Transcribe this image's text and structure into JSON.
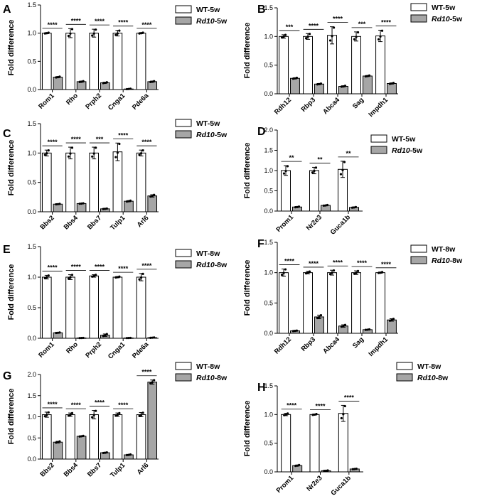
{
  "y_axis_label": "Fold difference",
  "colors": {
    "wt": "#ffffff",
    "rd10": "#a6a6a6",
    "stroke": "#000000"
  },
  "chart_data": [
    {
      "panel": "A",
      "type": "bar",
      "categories": [
        "Rom1",
        "Rho",
        "Prph2",
        "Cnga1",
        "Pde6a"
      ],
      "series": [
        {
          "name": "WT-5w",
          "values": [
            1.0,
            1.0,
            1.0,
            1.0,
            1.0
          ],
          "err": [
            0.01,
            0.08,
            0.07,
            0.05,
            0.01
          ]
        },
        {
          "name": "Rd10-5w",
          "values": [
            0.22,
            0.14,
            0.12,
            0.01,
            0.14
          ],
          "err": [
            0.01,
            0.01,
            0.01,
            0.005,
            0.01
          ]
        }
      ],
      "sig": [
        "****",
        "****",
        "****",
        "****",
        "****"
      ],
      "ylim": [
        0,
        1.5
      ],
      "yticks": [
        "0.0",
        "0.5",
        "1.0",
        "1.5"
      ],
      "legend": [
        {
          "pre": "WT-5w",
          "ital": "",
          "suf": ""
        },
        {
          "pre": "",
          "ital": "Rd10",
          "suf": "-5w"
        }
      ]
    },
    {
      "panel": "B",
      "type": "bar",
      "categories": [
        "Rdh12",
        "Rbp3",
        "Abca4",
        "Sag",
        "Impdh1"
      ],
      "series": [
        {
          "name": "WT-5w",
          "values": [
            1.0,
            1.0,
            1.02,
            1.0,
            1.01
          ],
          "err": [
            0.03,
            0.05,
            0.15,
            0.08,
            0.1
          ]
        },
        {
          "name": "Rd10-5w",
          "values": [
            0.27,
            0.17,
            0.13,
            0.31,
            0.18
          ],
          "err": [
            0.01,
            0.01,
            0.01,
            0.01,
            0.01
          ]
        }
      ],
      "sig": [
        "***",
        "****",
        "****",
        "***",
        "****"
      ],
      "ylim": [
        0,
        1.5
      ],
      "yticks": [
        "0.0",
        "0.5",
        "1.0",
        "1.5"
      ],
      "legend": [
        {
          "pre": "WT-5w",
          "ital": "",
          "suf": ""
        },
        {
          "pre": "",
          "ital": "Rd10",
          "suf": "-5w"
        }
      ]
    },
    {
      "panel": "C",
      "type": "bar",
      "categories": [
        "Bbs2",
        "Bbs4",
        "Bbs7",
        "Tulp1",
        "Arl6"
      ],
      "series": [
        {
          "name": "WT-5w",
          "values": [
            1.0,
            1.0,
            1.0,
            1.02,
            1.0
          ],
          "err": [
            0.05,
            0.1,
            0.1,
            0.15,
            0.05
          ]
        },
        {
          "name": "Rd10-5w",
          "values": [
            0.13,
            0.14,
            0.05,
            0.18,
            0.27
          ],
          "err": [
            0.005,
            0.005,
            0.005,
            0.01,
            0.02
          ]
        }
      ],
      "sig": [
        "****",
        "****",
        "***",
        "****",
        "****"
      ],
      "ylim": [
        0,
        1.5
      ],
      "yticks": [
        "0.0",
        "0.5",
        "1.0",
        "1.5"
      ],
      "legend": [
        {
          "pre": "WT-5w",
          "ital": "",
          "suf": ""
        },
        {
          "pre": "",
          "ital": "Rd10",
          "suf": "-5w"
        }
      ]
    },
    {
      "panel": "D",
      "type": "bar",
      "categories": [
        "Prom1",
        "Nr2e3",
        "Guca1b"
      ],
      "series": [
        {
          "name": "WT-5w",
          "values": [
            1.0,
            1.0,
            1.03
          ],
          "err": [
            0.12,
            0.08,
            0.2
          ]
        },
        {
          "name": "Rd10-5w",
          "values": [
            0.1,
            0.14,
            0.09
          ],
          "err": [
            0.01,
            0.01,
            0.01
          ]
        }
      ],
      "sig": [
        "**",
        "**",
        "**"
      ],
      "ylim": [
        0,
        2.0
      ],
      "yticks": [
        "0.0",
        "0.5",
        "1.0",
        "1.5",
        "2.0"
      ],
      "legend": [
        {
          "pre": "WT-5w",
          "ital": "",
          "suf": ""
        },
        {
          "pre": "",
          "ital": "Rd10",
          "suf": "-5w"
        }
      ]
    },
    {
      "panel": "E",
      "type": "bar",
      "categories": [
        "Rom1",
        "Rho",
        "Prph2",
        "Cnga1",
        "Pde6a"
      ],
      "series": [
        {
          "name": "WT-8w",
          "values": [
            1.0,
            1.0,
            1.02,
            1.0,
            1.0
          ],
          "err": [
            0.03,
            0.04,
            0.02,
            0.01,
            0.06
          ]
        },
        {
          "name": "Rd10-8w",
          "values": [
            0.09,
            0.005,
            0.05,
            0.005,
            0.01
          ],
          "err": [
            0.005,
            0.002,
            0.02,
            0.002,
            0.004
          ]
        }
      ],
      "sig": [
        "****",
        "****",
        "****",
        "****",
        "****"
      ],
      "ylim": [
        0,
        1.5
      ],
      "yticks": [
        "0.0",
        "0.5",
        "1.0",
        "1.5"
      ],
      "legend": [
        {
          "pre": "WT-8w",
          "ital": "",
          "suf": ""
        },
        {
          "pre": "",
          "ital": "Rd10",
          "suf": "-8w"
        }
      ]
    },
    {
      "panel": "F",
      "type": "bar",
      "categories": [
        "Rdh12",
        "Rbp3",
        "Abca4",
        "Sag",
        "Impdh1"
      ],
      "series": [
        {
          "name": "WT-8w",
          "values": [
            1.0,
            1.0,
            1.0,
            1.0,
            1.0
          ],
          "err": [
            0.06,
            0.02,
            0.04,
            0.03,
            0.01
          ]
        },
        {
          "name": "Rd10-8w",
          "values": [
            0.04,
            0.27,
            0.12,
            0.06,
            0.22
          ],
          "err": [
            0.005,
            0.03,
            0.02,
            0.005,
            0.02
          ]
        }
      ],
      "sig": [
        "****",
        "****",
        "****",
        "****",
        "****"
      ],
      "ylim": [
        0,
        1.5
      ],
      "yticks": [
        "0.0",
        "0.5",
        "1.0",
        "1.5"
      ],
      "legend": [
        {
          "pre": "WT-8w",
          "ital": "",
          "suf": ""
        },
        {
          "pre": "",
          "ital": "Rd10",
          "suf": "-8w"
        }
      ]
    },
    {
      "panel": "G",
      "type": "bar",
      "categories": [
        "Bbs2",
        "Bbs4",
        "Bbs7",
        "Tulp1",
        "Arl6"
      ],
      "series": [
        {
          "name": "WT-8w",
          "values": [
            1.05,
            1.05,
            1.05,
            1.05,
            1.05
          ],
          "err": [
            0.06,
            0.04,
            0.1,
            0.04,
            0.05
          ]
        },
        {
          "name": "Rd10-8w",
          "values": [
            0.4,
            0.54,
            0.15,
            0.1,
            1.82
          ],
          "err": [
            0.02,
            0.01,
            0.01,
            0.01,
            0.05
          ]
        }
      ],
      "sig": [
        "****",
        "****",
        "****",
        "****",
        "****"
      ],
      "ylim": [
        0,
        2.0
      ],
      "yticks": [
        "0.0",
        "0.5",
        "1.0",
        "1.5",
        "2.0"
      ],
      "legend": [
        {
          "pre": "WT-8w",
          "ital": "",
          "suf": ""
        },
        {
          "pre": "",
          "ital": "Rd10",
          "suf": "-8w"
        }
      ]
    },
    {
      "panel": "H",
      "type": "bar",
      "categories": [
        "Prom1",
        "Nr2e3",
        "Guca1b"
      ],
      "series": [
        {
          "name": "WT-8w",
          "values": [
            1.0,
            1.0,
            1.02
          ],
          "err": [
            0.02,
            0.01,
            0.14
          ]
        },
        {
          "name": "Rd10-8w",
          "values": [
            0.11,
            0.02,
            0.05
          ],
          "err": [
            0.01,
            0.005,
            0.005
          ]
        }
      ],
      "sig": [
        "****",
        "****",
        "****"
      ],
      "ylim": [
        0,
        1.5
      ],
      "yticks": [
        "0.0",
        "0.5",
        "1.0",
        "1.5"
      ],
      "legend": [
        {
          "pre": "WT-8w",
          "ital": "",
          "suf": ""
        },
        {
          "pre": "",
          "ital": "Rd10",
          "suf": "-8w"
        }
      ]
    }
  ]
}
